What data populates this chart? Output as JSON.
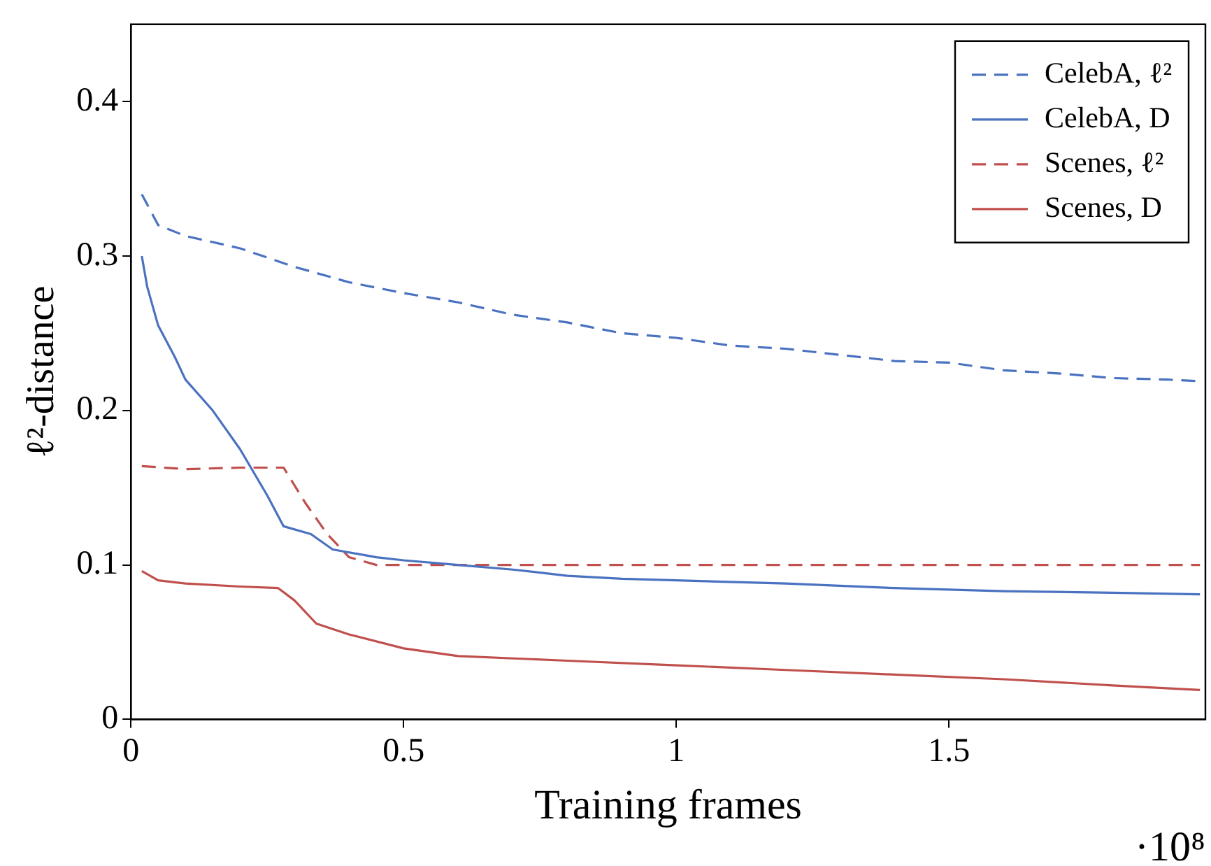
{
  "chart_data": {
    "type": "line",
    "xlabel": "Training frames",
    "ylabel": "ℓ²-distance",
    "annotations": [
      "·10⁸"
    ],
    "xlim": [
      0,
      1.97
    ],
    "xticks": [
      0,
      0.5,
      1,
      1.5
    ],
    "ylim": [
      0,
      0.45
    ],
    "yticks": [
      0,
      0.1,
      0.2,
      0.3,
      0.4
    ],
    "grid": false,
    "legend": "top right",
    "marker": "none",
    "series": [
      {
        "name": "CelebA, ℓ²",
        "color": "#4a72c0",
        "line_style": "dashed",
        "x": [
          0.02,
          0.05,
          0.1,
          0.2,
          0.3,
          0.4,
          0.5,
          0.6,
          0.7,
          0.8,
          0.9,
          1.0,
          1.1,
          1.2,
          1.3,
          1.4,
          1.5,
          1.6,
          1.7,
          1.8,
          1.9,
          1.96
        ],
        "values": [
          0.34,
          0.32,
          0.313,
          0.305,
          0.293,
          0.283,
          0.276,
          0.27,
          0.262,
          0.257,
          0.25,
          0.247,
          0.242,
          0.24,
          0.236,
          0.232,
          0.231,
          0.226,
          0.224,
          0.221,
          0.22,
          0.219
        ]
      },
      {
        "name": "CelebA, D",
        "color": "#4a72c0",
        "line_style": "solid",
        "x": [
          0.02,
          0.03,
          0.05,
          0.08,
          0.1,
          0.15,
          0.2,
          0.25,
          0.28,
          0.33,
          0.37,
          0.45,
          0.5,
          0.6,
          0.7,
          0.8,
          0.9,
          1.0,
          1.2,
          1.4,
          1.6,
          1.8,
          1.96
        ],
        "values": [
          0.3,
          0.28,
          0.255,
          0.235,
          0.22,
          0.2,
          0.175,
          0.145,
          0.125,
          0.12,
          0.11,
          0.105,
          0.103,
          0.1,
          0.097,
          0.093,
          0.091,
          0.09,
          0.088,
          0.085,
          0.083,
          0.082,
          0.081
        ]
      },
      {
        "name": "Scenes, ℓ²",
        "color": "#c0504d",
        "line_style": "dashed",
        "x": [
          0.02,
          0.1,
          0.2,
          0.28,
          0.32,
          0.36,
          0.4,
          0.45,
          0.6,
          1.0,
          1.5,
          1.96
        ],
        "values": [
          0.164,
          0.162,
          0.163,
          0.163,
          0.14,
          0.12,
          0.105,
          0.1,
          0.1,
          0.1,
          0.1,
          0.1
        ]
      },
      {
        "name": "Scenes, D",
        "color": "#c0504d",
        "line_style": "solid",
        "x": [
          0.02,
          0.05,
          0.1,
          0.2,
          0.27,
          0.3,
          0.34,
          0.4,
          0.5,
          0.6,
          0.8,
          1.0,
          1.2,
          1.4,
          1.6,
          1.8,
          1.96
        ],
        "values": [
          0.096,
          0.09,
          0.088,
          0.086,
          0.085,
          0.077,
          0.062,
          0.055,
          0.046,
          0.041,
          0.038,
          0.035,
          0.032,
          0.029,
          0.026,
          0.022,
          0.019
        ]
      }
    ]
  }
}
